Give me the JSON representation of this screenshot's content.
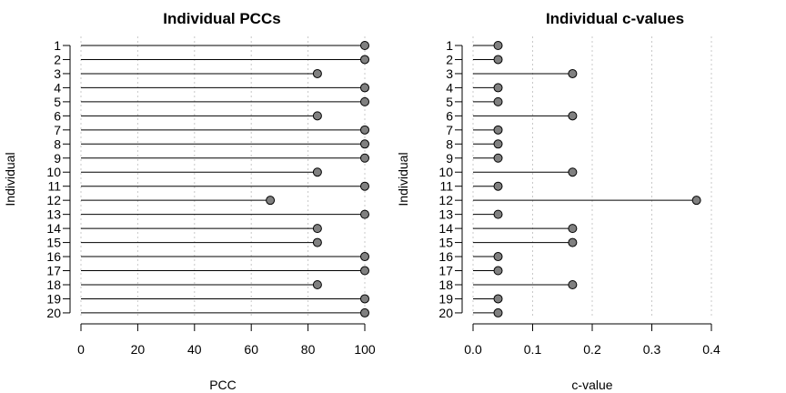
{
  "chart_data": [
    {
      "type": "lollipop",
      "title": "Individual PCCs",
      "xlabel": "PCC",
      "ylabel": "Individual",
      "categories": [
        "1",
        "2",
        "3",
        "4",
        "5",
        "6",
        "7",
        "8",
        "9",
        "10",
        "11",
        "12",
        "13",
        "14",
        "15",
        "16",
        "17",
        "18",
        "19",
        "20"
      ],
      "values": [
        100,
        100,
        83.3,
        100,
        100,
        83.3,
        100,
        100,
        100,
        83.3,
        100,
        66.7,
        100,
        83.3,
        83.3,
        100,
        100,
        83.3,
        100,
        100
      ],
      "xlim": [
        0,
        100
      ],
      "xticks": [
        0,
        20,
        40,
        60,
        80,
        100
      ],
      "xtick_labels": [
        "0",
        "20",
        "40",
        "60",
        "80",
        "100"
      ],
      "grid": "vertical dotted",
      "colors": {
        "point": "#808080",
        "line": "#000000",
        "grid": "#c8c8c8"
      }
    },
    {
      "type": "lollipop",
      "title": "Individual c-values",
      "xlabel": "c-value",
      "ylabel": "Individual",
      "categories": [
        "1",
        "2",
        "3",
        "4",
        "5",
        "6",
        "7",
        "8",
        "9",
        "10",
        "11",
        "12",
        "13",
        "14",
        "15",
        "16",
        "17",
        "18",
        "19",
        "20"
      ],
      "values": [
        0.042,
        0.042,
        0.167,
        0.042,
        0.042,
        0.167,
        0.042,
        0.042,
        0.042,
        0.167,
        0.042,
        0.375,
        0.042,
        0.167,
        0.167,
        0.042,
        0.042,
        0.167,
        0.042,
        0.042
      ],
      "xlim": [
        0,
        0.4
      ],
      "xticks": [
        0,
        0.1,
        0.2,
        0.3,
        0.4
      ],
      "xtick_labels": [
        "0.0",
        "0.1",
        "0.2",
        "0.3",
        "0.4"
      ],
      "grid": "vertical dotted",
      "colors": {
        "point": "#808080",
        "line": "#000000",
        "grid": "#c8c8c8"
      }
    }
  ]
}
